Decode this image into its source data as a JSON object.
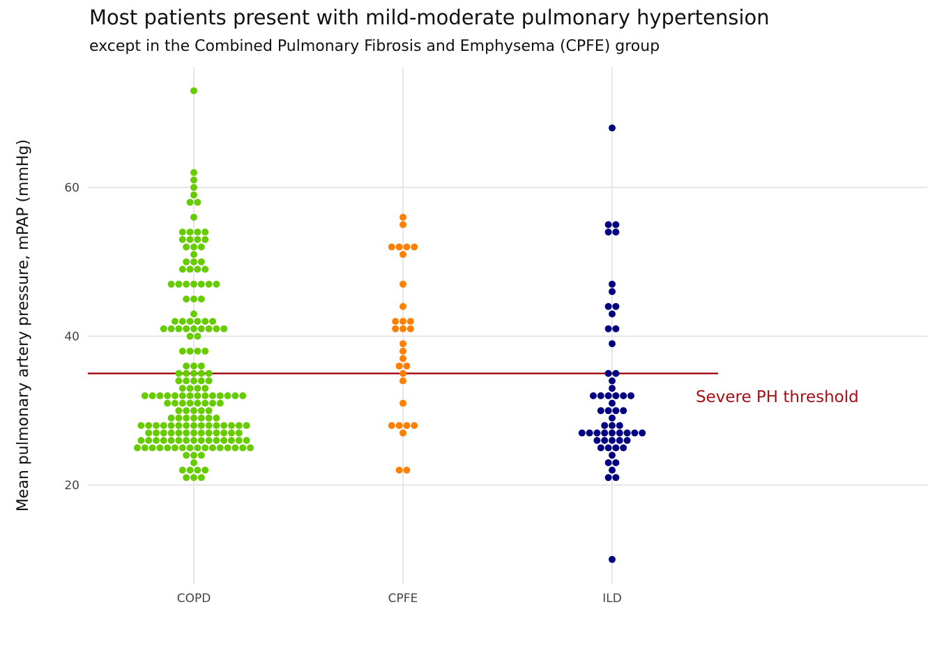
{
  "chart_data": {
    "type": "scatter",
    "subtype": "dotplot",
    "title": "Most patients present with mild-moderate pulmonary hypertension",
    "subtitle": "except in the Combined Pulmonary Fibrosis and Emphysema (CPFE) group",
    "xlabel": "",
    "ylabel": "Mean pulmonary artery pressure, mPAP (mmHg)",
    "categories": [
      "COPD",
      "CPFE",
      "ILD"
    ],
    "yticks": [
      20,
      40,
      60
    ],
    "ylim": [
      7,
      76
    ],
    "grid": true,
    "legend": "none",
    "colors": {
      "COPD": "#66cc00",
      "CPFE": "#ff7f00",
      "ILD": "#000080",
      "threshold": "#a50f15",
      "grid": "#e6e6e6"
    },
    "reference_line": {
      "y": 35,
      "label": "Severe PH threshold"
    },
    "series": [
      {
        "category": "COPD",
        "values": [
          73,
          62,
          61,
          60,
          59,
          58,
          58,
          56,
          54,
          54,
          54,
          54,
          53,
          53,
          53,
          53,
          52,
          52,
          52,
          51,
          50,
          50,
          50,
          49,
          49,
          49,
          49,
          47,
          47,
          47,
          47,
          47,
          47,
          47,
          45,
          45,
          45,
          43,
          42,
          42,
          42,
          42,
          42,
          42,
          41,
          41,
          41,
          41,
          41,
          41,
          41,
          41,
          41,
          40,
          40,
          38,
          38,
          38,
          38,
          36,
          36,
          36,
          35,
          35,
          35,
          35,
          35,
          34,
          34,
          34,
          34,
          34,
          33,
          33,
          33,
          33,
          32,
          32,
          32,
          32,
          32,
          32,
          32,
          32,
          32,
          32,
          32,
          32,
          32,
          32,
          31,
          31,
          31,
          31,
          31,
          31,
          31,
          31,
          30,
          30,
          30,
          30,
          30,
          29,
          29,
          29,
          29,
          29,
          29,
          29,
          28,
          28,
          28,
          28,
          28,
          28,
          28,
          28,
          28,
          28,
          28,
          28,
          28,
          28,
          28,
          27,
          27,
          27,
          27,
          27,
          27,
          27,
          27,
          27,
          27,
          27,
          27,
          27,
          26,
          26,
          26,
          26,
          26,
          26,
          26,
          26,
          26,
          26,
          26,
          26,
          26,
          26,
          26,
          25,
          25,
          25,
          25,
          25,
          25,
          25,
          25,
          25,
          25,
          25,
          25,
          25,
          25,
          25,
          25,
          24,
          24,
          24,
          23,
          22,
          22,
          22,
          22,
          21,
          21,
          21
        ]
      },
      {
        "category": "CPFE",
        "values": [
          56,
          55,
          52,
          52,
          52,
          52,
          51,
          47,
          44,
          42,
          42,
          42,
          41,
          41,
          41,
          39,
          38,
          37,
          36,
          36,
          35,
          34,
          31,
          28,
          28,
          28,
          28,
          27,
          22,
          22
        ]
      },
      {
        "category": "ILD",
        "values": [
          68,
          55,
          55,
          54,
          54,
          47,
          46,
          44,
          44,
          43,
          41,
          41,
          39,
          35,
          35,
          34,
          33,
          32,
          32,
          32,
          32,
          32,
          32,
          31,
          30,
          30,
          30,
          30,
          29,
          28,
          28,
          28,
          27,
          27,
          27,
          27,
          27,
          27,
          27,
          27,
          27,
          26,
          26,
          26,
          26,
          26,
          25,
          25,
          25,
          25,
          24,
          23,
          23,
          22,
          21,
          21,
          10
        ]
      }
    ]
  }
}
